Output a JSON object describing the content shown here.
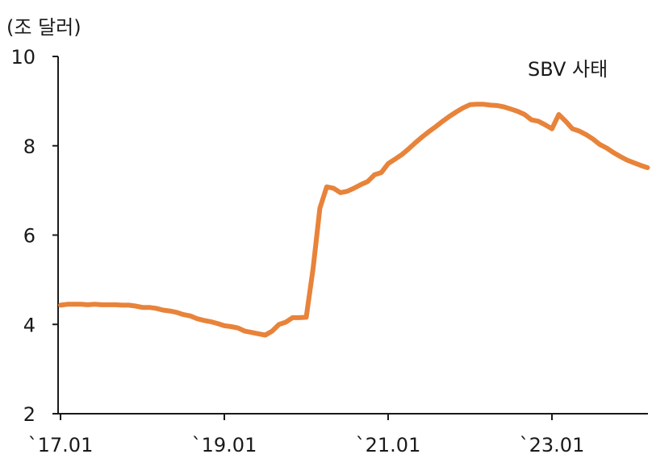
{
  "chart_data": {
    "type": "line",
    "unit_label": "(조 달러)",
    "annotation": "SBV 사태",
    "ylim": [
      2,
      10
    ],
    "yticks": [
      2,
      4,
      6,
      8,
      10
    ],
    "xlim": [
      "2017-01",
      "2024-03"
    ],
    "xticks": [
      {
        "x": "2017-01",
        "label": "`17.01"
      },
      {
        "x": "2019-01",
        "label": "`19.01"
      },
      {
        "x": "2021-01",
        "label": "`21.01"
      },
      {
        "x": "2023-01",
        "label": "`23.01"
      }
    ],
    "grid": false,
    "legend": "none",
    "series_color": "#e8833a",
    "series": [
      {
        "x": [
          "2017-01",
          "2017-02",
          "2017-03",
          "2017-04",
          "2017-05",
          "2017-06",
          "2017-07",
          "2017-08",
          "2017-09",
          "2017-10",
          "2017-11",
          "2017-12",
          "2018-01",
          "2018-02",
          "2018-03",
          "2018-04",
          "2018-05",
          "2018-06",
          "2018-07",
          "2018-08",
          "2018-09",
          "2018-10",
          "2018-11",
          "2018-12",
          "2019-01",
          "2019-02",
          "2019-03",
          "2019-04",
          "2019-05",
          "2019-06",
          "2019-07",
          "2019-08",
          "2019-09",
          "2019-10",
          "2019-11",
          "2019-12",
          "2020-01",
          "2020-02",
          "2020-03",
          "2020-04",
          "2020-05",
          "2020-06",
          "2020-07",
          "2020-08",
          "2020-09",
          "2020-10",
          "2020-11",
          "2020-12",
          "2021-01",
          "2021-02",
          "2021-03",
          "2021-04",
          "2021-05",
          "2021-06",
          "2021-07",
          "2021-08",
          "2021-09",
          "2021-10",
          "2021-11",
          "2021-12",
          "2022-01",
          "2022-02",
          "2022-03",
          "2022-04",
          "2022-05",
          "2022-06",
          "2022-07",
          "2022-08",
          "2022-09",
          "2022-10",
          "2022-11",
          "2022-12",
          "2023-01",
          "2023-02",
          "2023-03",
          "2023-04",
          "2023-05",
          "2023-06",
          "2023-07",
          "2023-08",
          "2023-09",
          "2023-10",
          "2023-11",
          "2023-12",
          "2024-01",
          "2024-02",
          "2024-03"
        ],
        "y": [
          4.43,
          4.45,
          4.45,
          4.45,
          4.44,
          4.45,
          4.44,
          4.44,
          4.44,
          4.43,
          4.43,
          4.41,
          4.38,
          4.38,
          4.36,
          4.32,
          4.3,
          4.27,
          4.22,
          4.19,
          4.13,
          4.09,
          4.06,
          4.02,
          3.97,
          3.95,
          3.92,
          3.85,
          3.82,
          3.79,
          3.76,
          3.85,
          4.0,
          4.05,
          4.15,
          4.15,
          4.16,
          5.25,
          6.6,
          7.08,
          7.05,
          6.95,
          6.98,
          7.05,
          7.13,
          7.2,
          7.35,
          7.4,
          7.6,
          7.7,
          7.8,
          7.93,
          8.07,
          8.2,
          8.32,
          8.43,
          8.55,
          8.66,
          8.76,
          8.85,
          8.92,
          8.93,
          8.93,
          8.91,
          8.9,
          8.87,
          8.82,
          8.77,
          8.7,
          8.58,
          8.55,
          8.47,
          8.38,
          8.7,
          8.55,
          8.38,
          8.33,
          8.25,
          8.15,
          8.03,
          7.95,
          7.85,
          7.76,
          7.68,
          7.62,
          7.56,
          7.51
        ]
      }
    ]
  }
}
